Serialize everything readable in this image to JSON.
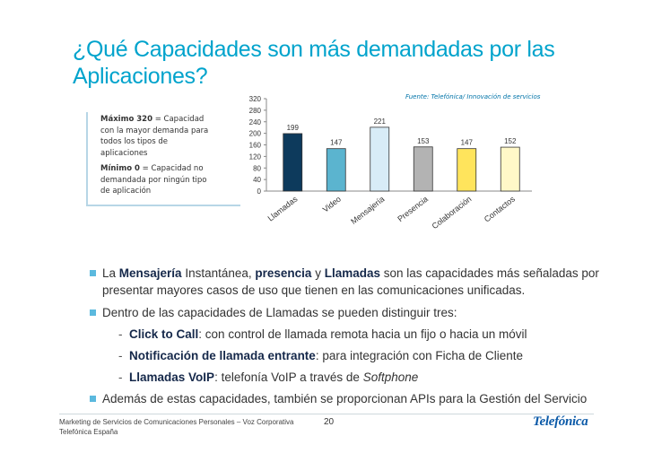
{
  "slide": {
    "title_line1": "¿Qué Capacidades son más demandadas por las",
    "title_line2": "Aplicaciones?",
    "source": "Fuente: Telefónica/ Innovación de servicios"
  },
  "notes": {
    "max_bold": "Máximo 320",
    "max_text_l1": " = Capacidad",
    "max_text_l2": "con la mayor demanda para",
    "max_text_l3": "todos los tipos de",
    "max_text_l4": "aplicaciones",
    "min_bold": "Mínimo 0",
    "min_text_l1": " = Capacidad no",
    "min_text_l2": "demandada por ningún tipo",
    "min_text_l3": "de aplicación"
  },
  "chart_data": {
    "type": "bar",
    "categories": [
      "Llamadas",
      "Video",
      "Mensajería",
      "Presencia",
      "Colaboración",
      "Contactos"
    ],
    "values": [
      199,
      147,
      221,
      153,
      147,
      152
    ],
    "colors": [
      "#0d3a5c",
      "#5bb4cf",
      "#d8ecf7",
      "#b3b3b3",
      "#ffe45c",
      "#fff8c8"
    ],
    "ylim": [
      0,
      320
    ],
    "yticks": [
      0,
      40,
      80,
      120,
      160,
      200,
      240,
      280,
      320
    ],
    "title": "",
    "xlabel": "",
    "ylabel": "",
    "grid": false
  },
  "bullets": {
    "b1_l1_a": "La ",
    "b1_l1_b": "Mensajería",
    "b1_l1_c": " Instantánea, ",
    "b1_l1_d": "presencia",
    "b1_l1_e": " y ",
    "b1_l1_f": "Llamadas",
    "b1_l1_g": " son las capacidades más señaladas por",
    "b1_l2": "presentar mayores casos de uso que tienen en las comunicaciones unificadas.",
    "b2": "Dentro de las capacidades de Llamadas se pueden distinguir tres:",
    "s1_bold": "Click to Call",
    "s1_text": ": con control de llamada remota hacia un fijo o hacia un móvil",
    "s2_bold": "Notificación de llamada entrante",
    "s2_text": ": para integración con Ficha de Cliente",
    "s3_bold": "Llamadas VoIP",
    "s3_text": ": telefonía VoIP a través de ",
    "s3_italic": "Softphone",
    "b3": "Además de estas capacidades, también se proporcionan APIs para la Gestión del Servicio",
    "dash": "-"
  },
  "footer": {
    "line1": "Marketing de Servicios de Comunicaciones Personales – Voz Corporativa",
    "line2": "Telefónica España",
    "page": "20",
    "logo": "Telefónica"
  }
}
